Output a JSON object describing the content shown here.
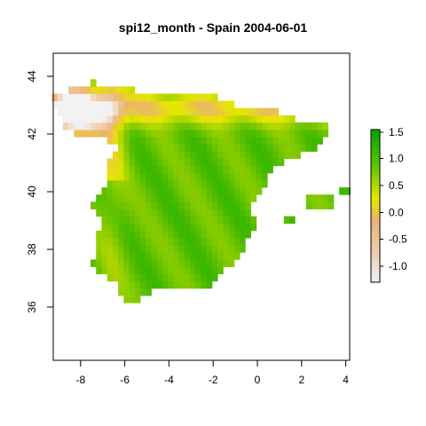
{
  "title": "spi12_month - Spain 2004-06-01",
  "map": {
    "x_range": [
      -9.3,
      4.2
    ],
    "y_range": [
      34.1,
      44.8
    ],
    "x_ticks": [
      -8,
      -6,
      -4,
      -2,
      0,
      2,
      4
    ],
    "y_ticks": [
      36,
      38,
      40,
      42,
      44
    ],
    "x_tick_labels": [
      "-8",
      "-6",
      "-4",
      "-2",
      "0",
      "2",
      "4"
    ],
    "y_tick_labels": [
      "36",
      "38",
      "40",
      "42",
      "44"
    ]
  },
  "legend": {
    "min": -1.35,
    "max": 1.55,
    "ticks": [
      1.5,
      1.0,
      0.5,
      0.0,
      -0.5,
      -1.0
    ],
    "tick_labels": [
      "1.5",
      "1.0",
      "0.5",
      "0.0",
      "-0.5",
      "-1.0"
    ]
  },
  "colors": {
    "low": "#f2f2f2",
    "mid_low": "#ecb176",
    "mid": "#e6e600",
    "high": "#00a600",
    "frame": "#000000"
  }
}
